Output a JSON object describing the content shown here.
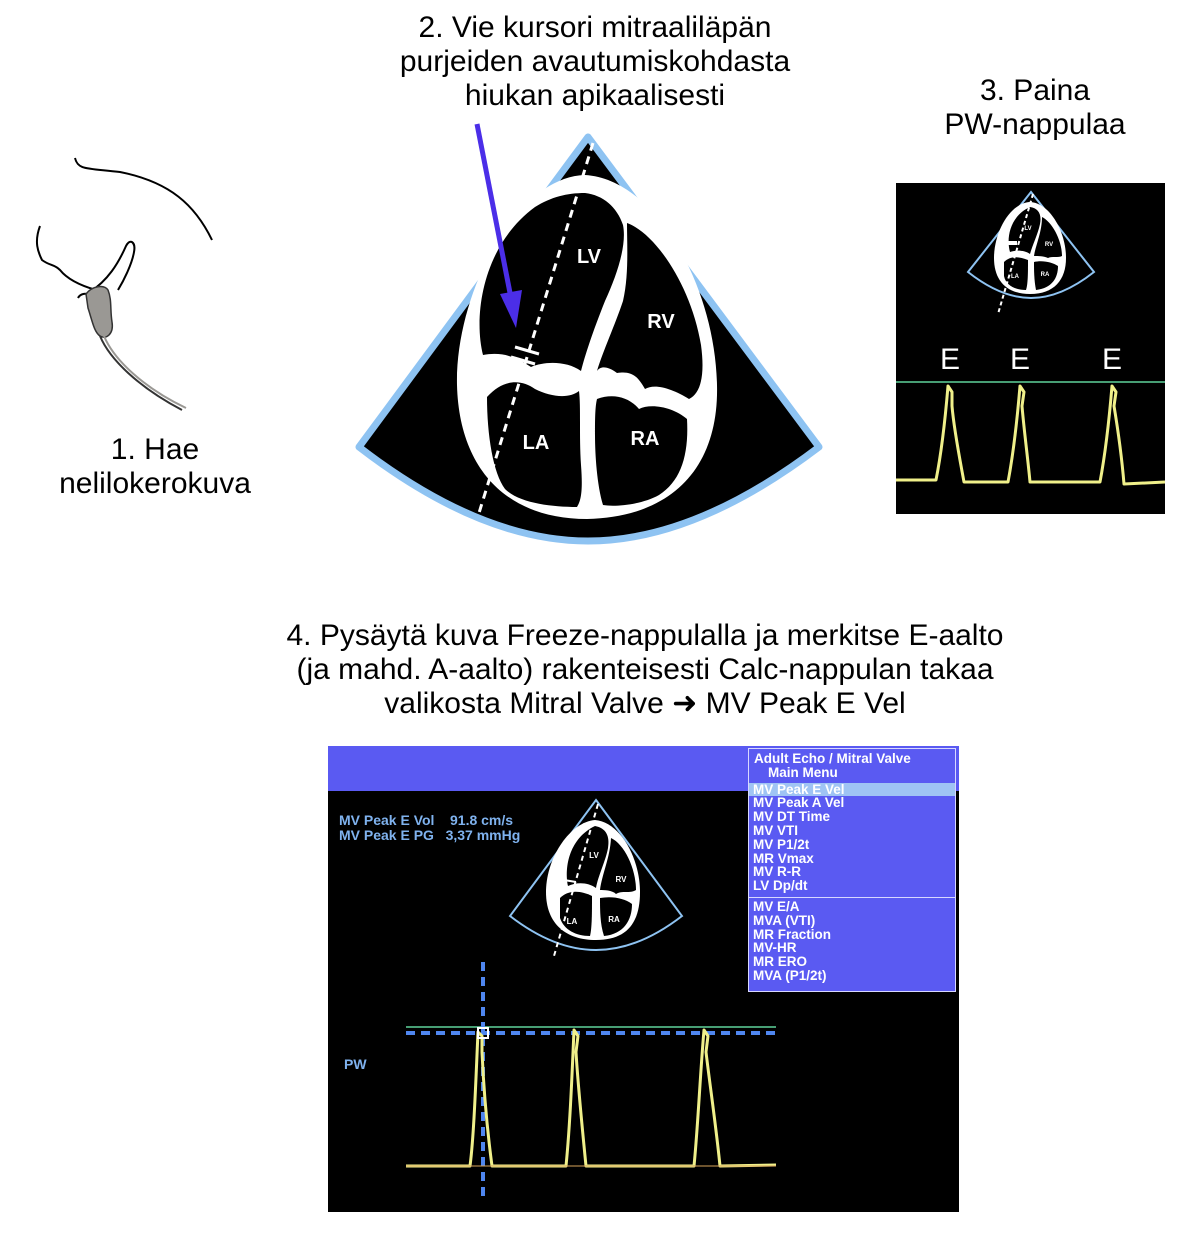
{
  "steps": {
    "step1": [
      "1. Hae",
      "nelilokerokuva"
    ],
    "step2": [
      "2. Vie kursori mitraaliläpän",
      "purjeiden avautumiskohdasta",
      "hiukan apikaalisesti"
    ],
    "step3": [
      "3. Paina",
      "PW-nappulaa"
    ],
    "step4": [
      "4. Pysäytä kuva Freeze-nappulalla  ja merkitse E-aalto",
      "(ja mahd. A-aalto) rakenteisesti Calc-nappulan takaa",
      "valikosta Mitral Valve ➜ MV Peak E Vel"
    ]
  },
  "heart_labels": {
    "lv": "LV",
    "rv": "RV",
    "la": "LA",
    "ra": "RA"
  },
  "pw_panel": {
    "wave_labels": [
      "E",
      "E",
      "E"
    ]
  },
  "calc_screen": {
    "readouts": [
      "MV Peak E Vol    91.8 cm/s",
      "MV Peak E PG   3,37 mmHg"
    ],
    "pw_label": "PW",
    "menu": {
      "title": "Adult Echo / Mitral Valve",
      "subtitle": "Main Menu",
      "group1": [
        "MV Peak E Vel",
        "MV Peak A Vel",
        "MV DT Time",
        "MV VTI",
        "MV P1/2t",
        "MR Vmax",
        "MV R-R",
        "LV Dp/dt"
      ],
      "group2": [
        "MV E/A",
        "MVA (VTI)",
        "MR Fraction",
        "MV-HR",
        "MR ERO",
        "MVA (P1/2t)"
      ],
      "selected": "MV Peak E Vel"
    }
  },
  "colors": {
    "sector_border": "#8ec3f2",
    "cursor_arrow": "#4b2ee8",
    "doppler_trace": "#f0f08a",
    "baseline": "#5fd39b",
    "menu_bg": "#5a5af2",
    "menu_selected": "#9fc4f4",
    "readout_text": "#7fb2ee",
    "crosshair": "#4f86ef"
  }
}
